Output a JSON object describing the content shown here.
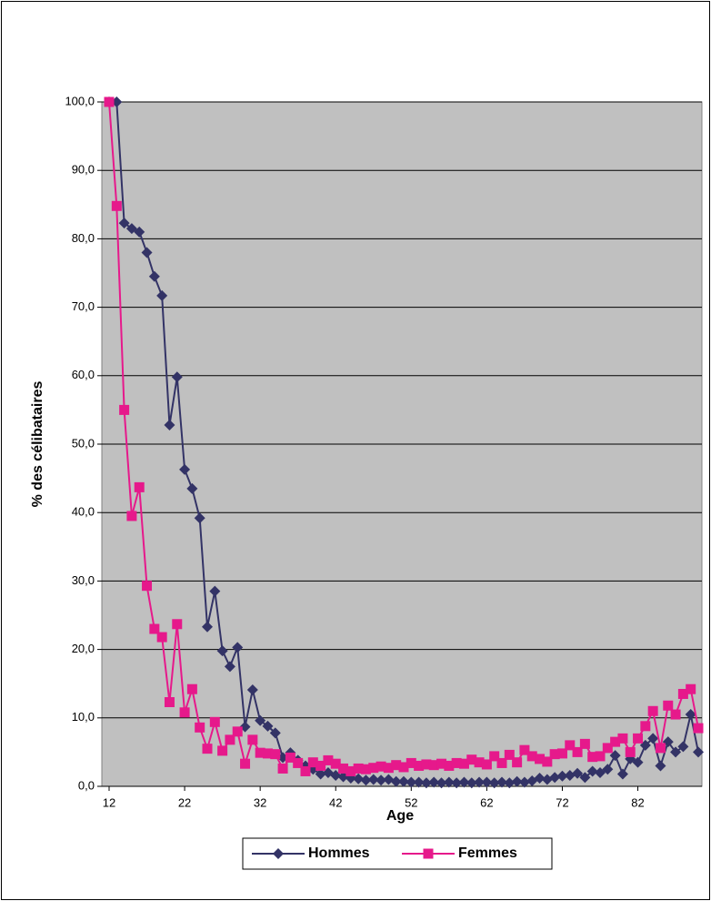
{
  "chart_data": {
    "type": "line",
    "x_label": "Age",
    "y_label": "% des célibataires",
    "x": [
      12,
      13,
      14,
      15,
      16,
      17,
      18,
      19,
      20,
      21,
      22,
      23,
      24,
      25,
      26,
      27,
      28,
      29,
      30,
      31,
      32,
      33,
      34,
      35,
      36,
      37,
      38,
      39,
      40,
      41,
      42,
      43,
      44,
      45,
      46,
      47,
      48,
      49,
      50,
      51,
      52,
      53,
      54,
      55,
      56,
      57,
      58,
      59,
      60,
      61,
      62,
      63,
      64,
      65,
      66,
      67,
      68,
      69,
      70,
      71,
      72,
      73,
      74,
      75,
      76,
      77,
      78,
      79,
      80,
      81,
      82,
      83,
      84,
      85,
      86,
      87,
      88,
      89,
      90
    ],
    "xlim": [
      12,
      90
    ],
    "xticks": [
      12,
      22,
      32,
      42,
      52,
      62,
      72,
      82
    ],
    "ylim": [
      0,
      100
    ],
    "yticks": [
      {
        "value": 0,
        "label": "0,0"
      },
      {
        "value": 10,
        "label": "10,0"
      },
      {
        "value": 20,
        "label": "20,0"
      },
      {
        "value": 30,
        "label": "30,0"
      },
      {
        "value": 40,
        "label": "40,0"
      },
      {
        "value": 50,
        "label": "50,0"
      },
      {
        "value": 60,
        "label": "60,0"
      },
      {
        "value": 70,
        "label": "70,0"
      },
      {
        "value": 80,
        "label": "80,0"
      },
      {
        "value": 90,
        "label": "90,0"
      },
      {
        "value": 100,
        "label": "100,0"
      }
    ],
    "grid": true,
    "legend": "bottom",
    "series": [
      {
        "name": "Hommes",
        "color": "#333366",
        "marker": "diamond",
        "values": [
          100,
          100,
          82.3,
          81.5,
          81,
          78,
          74.5,
          71.7,
          52.8,
          59.8,
          46.3,
          43.5,
          39.2,
          23.3,
          28.5,
          19.8,
          17.5,
          20.3,
          8.7,
          14.1,
          9.6,
          8.8,
          7.8,
          4.2,
          4.9,
          3.8,
          3.0,
          2.5,
          1.8,
          2.0,
          1.6,
          1.4,
          1.2,
          1.1,
          0.9,
          1.0,
          0.9,
          1.0,
          0.7,
          0.7,
          0.6,
          0.6,
          0.5,
          0.6,
          0.5,
          0.6,
          0.5,
          0.6,
          0.5,
          0.6,
          0.6,
          0.5,
          0.6,
          0.5,
          0.7,
          0.6,
          0.8,
          1.2,
          1.0,
          1.3,
          1.5,
          1.6,
          1.9,
          1.3,
          2.2,
          2.0,
          2.5,
          4.5,
          1.8,
          4.0,
          3.5,
          6.0,
          7.0,
          3.0,
          6.5,
          5.0,
          5.8,
          10.5,
          5.0
        ]
      },
      {
        "name": "Femmes",
        "color": "#e6198b",
        "marker": "square",
        "values": [
          100,
          84.8,
          55,
          39.5,
          43.7,
          29.3,
          23,
          21.8,
          12.3,
          23.7,
          10.8,
          14.2,
          8.6,
          5.5,
          9.4,
          5.2,
          6.8,
          8.0,
          3.3,
          6.8,
          4.9,
          4.8,
          4.7,
          2.6,
          4.2,
          3.4,
          2.2,
          3.5,
          3.0,
          3.8,
          3.3,
          2.6,
          2.2,
          2.6,
          2.5,
          2.7,
          2.9,
          2.7,
          3.1,
          2.8,
          3.4,
          3.0,
          3.2,
          3.1,
          3.3,
          3.0,
          3.4,
          3.3,
          3.9,
          3.5,
          3.2,
          4.4,
          3.4,
          4.6,
          3.5,
          5.3,
          4.4,
          4.0,
          3.6,
          4.7,
          4.8,
          6.0,
          5.0,
          6.2,
          4.3,
          4.4,
          5.6,
          6.5,
          7.0,
          5.0,
          7.0,
          8.8,
          11.0,
          5.6,
          11.8,
          10.5,
          13.5,
          14.2,
          8.5
        ]
      }
    ]
  }
}
